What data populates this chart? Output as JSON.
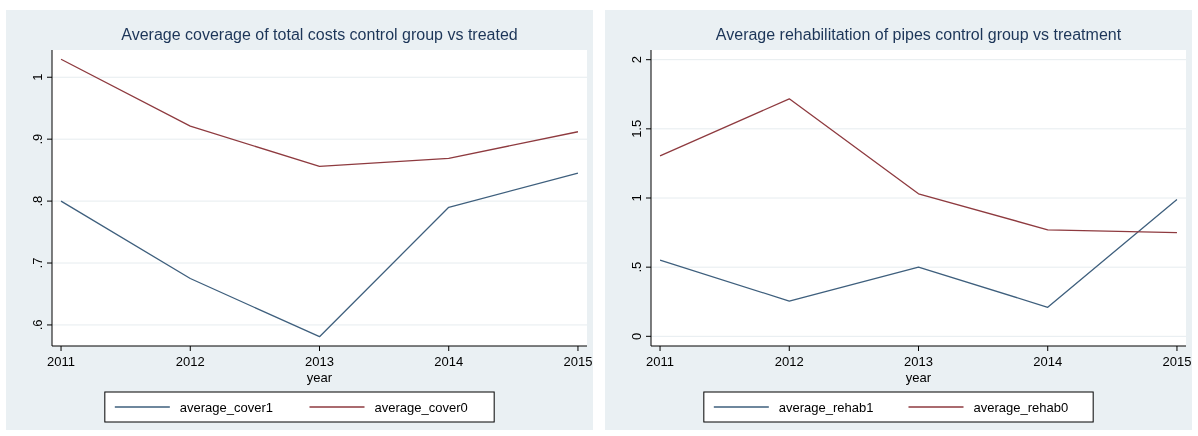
{
  "chart_data": [
    {
      "type": "line",
      "title": "Average coverage of total costs control group vs treated",
      "xlabel": "year",
      "x": [
        2011,
        2012,
        2013,
        2014,
        2015
      ],
      "xlim": [
        2010.93,
        2015.07
      ],
      "xticks": [
        2011,
        2012,
        2013,
        2014,
        2015
      ],
      "ylim": [
        0.566,
        1.044
      ],
      "yticks": [
        {
          "value": 0.6,
          "label": ".6"
        },
        {
          "value": 0.7,
          "label": ".7"
        },
        {
          "value": 0.8,
          "label": ".8"
        },
        {
          "value": 0.9,
          "label": ".9"
        },
        1
      ],
      "grid": "y",
      "legend": "bottom",
      "marker": "none",
      "series": [
        {
          "name": "average_cover1",
          "color": "#3e5f7d",
          "values": [
            0.8,
            0.675,
            0.581,
            0.79,
            0.845
          ]
        },
        {
          "name": "average_cover0",
          "color": "#8e3a3f",
          "values": [
            1.029,
            0.921,
            0.856,
            0.869,
            0.912
          ]
        }
      ]
    },
    {
      "type": "line",
      "title": "Average rehabilitation of pipes control group vs treatment",
      "xlabel": "year",
      "x": [
        2011,
        2012,
        2013,
        2014,
        2015
      ],
      "xlim": [
        2010.93,
        2015.07
      ],
      "xticks": [
        2011,
        2012,
        2013,
        2014,
        2015
      ],
      "ylim": [
        -0.07,
        2.07
      ],
      "yticks": [
        0,
        {
          "value": 0.5,
          "label": ".5"
        },
        1,
        1.5,
        2
      ],
      "grid": "y",
      "legend": "bottom",
      "marker": "none",
      "series": [
        {
          "name": "average_rehab1",
          "color": "#3e5f7d",
          "values": [
            0.55,
            0.255,
            0.5,
            0.21,
            0.99
          ]
        },
        {
          "name": "average_rehab0",
          "color": "#8e3a3f",
          "values": [
            1.305,
            1.717,
            1.03,
            0.77,
            0.75
          ]
        }
      ]
    }
  ]
}
